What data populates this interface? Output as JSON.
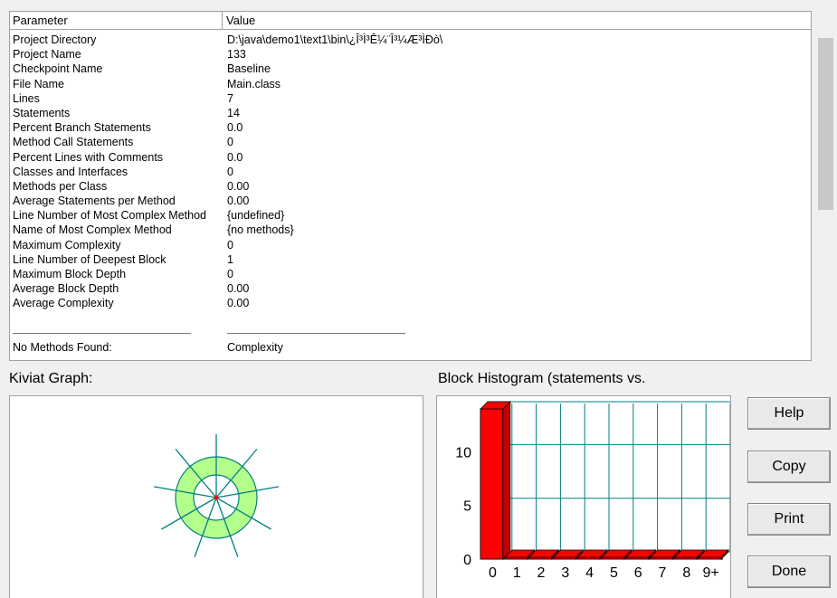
{
  "table": {
    "headers": {
      "parameter": "Parameter",
      "value": "Value"
    },
    "rows": [
      {
        "name": "Project Directory",
        "value": "D:\\java\\demo1\\text1\\bin\\¿Î³Ì³Ê¼¨Î³¼Æ³ÌÐò\\"
      },
      {
        "name": "Project Name",
        "value": "133"
      },
      {
        "name": "Checkpoint Name",
        "value": "Baseline"
      },
      {
        "name": "File Name",
        "value": "Main.class"
      },
      {
        "name": "Lines",
        "value": "7"
      },
      {
        "name": "Statements",
        "value": "14"
      },
      {
        "name": "Percent Branch Statements",
        "value": "0.0"
      },
      {
        "name": "Method Call Statements",
        "value": "0"
      },
      {
        "name": "Percent Lines with Comments",
        "value": "0.0"
      },
      {
        "name": "Classes and Interfaces",
        "value": "0"
      },
      {
        "name": "Methods per Class",
        "value": "0.00"
      },
      {
        "name": "Average Statements per Method",
        "value": "0.00"
      },
      {
        "name": "Line Number of Most Complex Method",
        "value": "{undefined}"
      },
      {
        "name": "Name of Most Complex Method",
        "value": "{no methods}"
      },
      {
        "name": "Maximum Complexity",
        "value": "0"
      },
      {
        "name": "Line Number of Deepest Block",
        "value": "1"
      },
      {
        "name": "Maximum Block Depth",
        "value": "0"
      },
      {
        "name": "Average Block Depth",
        "value": "0.00"
      },
      {
        "name": "Average Complexity",
        "value": "0.00"
      }
    ],
    "footer": {
      "name": "No Methods Found:",
      "value": "Complexity"
    }
  },
  "kiviat": {
    "label": "Kiviat Graph:",
    "axis_count": 9
  },
  "histogram": {
    "label": "Block Histogram (statements vs.",
    "colors": {
      "bar": "#ff0000",
      "grid": "#008080"
    }
  },
  "chart_data": {
    "type": "bar",
    "title": "Block Histogram (statements vs.",
    "categories": [
      "0",
      "1",
      "2",
      "3",
      "4",
      "5",
      "6",
      "7",
      "8",
      "9+"
    ],
    "values": [
      14,
      0,
      0,
      0,
      0,
      0,
      0,
      0,
      0,
      0
    ],
    "yticks": [
      "0",
      "5",
      "10"
    ],
    "ylim": [
      0,
      14
    ],
    "grid": true
  },
  "buttons": {
    "help": "Help",
    "copy": "Copy",
    "print": "Print",
    "done": "Done"
  }
}
